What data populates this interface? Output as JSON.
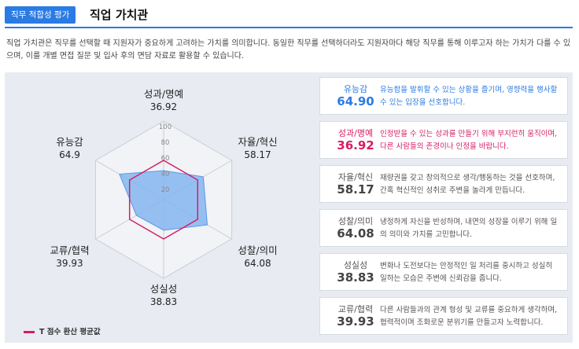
{
  "header": {
    "badge": "직무 적합성 평가",
    "title": "직업 가치관"
  },
  "description": "직업 가치관은 직무를 선택할 때 지원자가 중요하게 고려하는 가치를 의미합니다. 동일한 직무를 선택하더라도 지원자마다 해당 직무를 통해 이루고자 하는 가치가 다를 수 있으며, 이를 개별 면접 질문 및 입사 후의 면담 자료로 활용할 수 있습니다.",
  "chart_data": {
    "type": "radar",
    "axes": [
      "성과/명예",
      "자율/혁신",
      "성찰/의미",
      "성실성",
      "교류/협력",
      "유능감"
    ],
    "values": [
      36.92,
      58.17,
      64.08,
      38.83,
      39.93,
      64.9
    ],
    "average": 50,
    "value_labels": [
      "36.92",
      "58.17",
      "64.08",
      "38.83",
      "39.93",
      "64.9"
    ],
    "ticks": [
      20,
      40,
      60,
      80,
      100
    ],
    "rlim": [
      0,
      100
    ],
    "legend": "T 점수 환산 평균값",
    "colors": {
      "fill": "#7fb2f0",
      "average": "#d61e63",
      "grid": "#c9ced6"
    }
  },
  "cards": [
    {
      "name": "유능감",
      "value": "64.90",
      "style": "hl-blue",
      "text": "유능함을 발휘할 수 있는 상황을 즐기며, 영향력을 행사할 수 있는 입장을 선호합니다."
    },
    {
      "name": "성과/명예",
      "value": "36.92",
      "style": "hl-red",
      "text": "인정받을 수 있는 성과를 만들기 위해 부지런히 움직이며, 다른 사람들의 존경이나 인정을 바랍니다."
    },
    {
      "name": "자율/혁신",
      "value": "58.17",
      "style": "plain",
      "text": "재량권을 갖고 창의적으로 생각/행동하는 것을 선호하며, 간혹 혁신적인 성취로 주변을 놀라게 만듭니다."
    },
    {
      "name": "성찰/의미",
      "value": "64.08",
      "style": "plain",
      "text": "냉정하게 자신을 반성하며, 내면의 성장을 이루기 위해 일의 의미와 가치를 고민합니다."
    },
    {
      "name": "성실성",
      "value": "38.83",
      "style": "plain",
      "text": "변화나 도전보다는 안정적인 일 처리를 중시하고 성실히 일하는 모습은 주변에 신뢰감을 줍니다."
    },
    {
      "name": "교류/협력",
      "value": "39.93",
      "style": "plain",
      "text": "다른 사람들과의 관계 형성 및 교류를 중요하게 생각하며, 협력적이며 조화로운 분위기를 만들고자 노력합니다."
    }
  ]
}
